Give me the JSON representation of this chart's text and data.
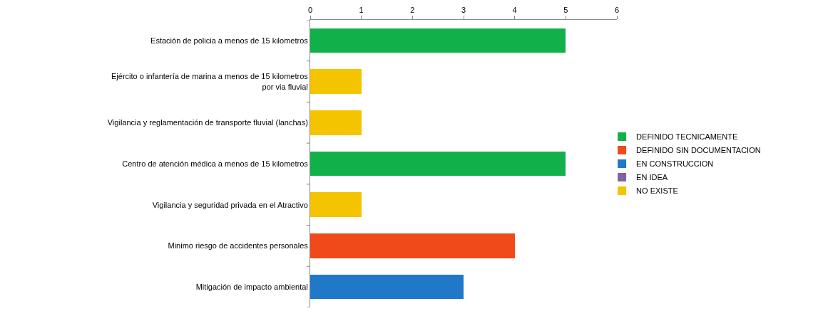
{
  "chart_data": {
    "type": "bar",
    "orientation": "horizontal",
    "stacked": true,
    "categories": [
      "Estación de policia a menos de 15 kilometros",
      "Ejército o infantería de marina a menos de 15 kilometros\npor via fluvial",
      "Vigilancia y reglamentación de transporte fluvial (lanchas)",
      "Centro de atención médica a menos de 15 kilometros",
      "Vigilancia y seguridad privada en el Atractivo",
      "Minimo riesgo de accidentes personales",
      "Mitigación de impacto ambiental"
    ],
    "series": [
      {
        "name": "DEFINIDO TECNICAMENTE",
        "color": "#12b04a",
        "values": [
          5,
          null,
          null,
          5,
          null,
          null,
          null
        ]
      },
      {
        "name": "DEFINIDO SIN DOCUMENTACION",
        "color": "#f04a1a",
        "values": [
          null,
          null,
          null,
          null,
          null,
          4,
          null
        ]
      },
      {
        "name": "EN CONSTRUCCION",
        "color": "#1f78c8",
        "values": [
          null,
          null,
          null,
          null,
          null,
          null,
          3
        ]
      },
      {
        "name": "EN IDEA",
        "color": "#8064a2",
        "values": [
          null,
          null,
          null,
          null,
          null,
          null,
          null
        ]
      },
      {
        "name": "NO EXISTE",
        "color": "#f5c400",
        "values": [
          null,
          1,
          1,
          null,
          1,
          null,
          null
        ]
      }
    ],
    "xlim": [
      0,
      6
    ],
    "xticks": [
      0,
      1,
      2,
      3,
      4,
      5,
      6
    ],
    "grid": false,
    "legend": "right"
  }
}
